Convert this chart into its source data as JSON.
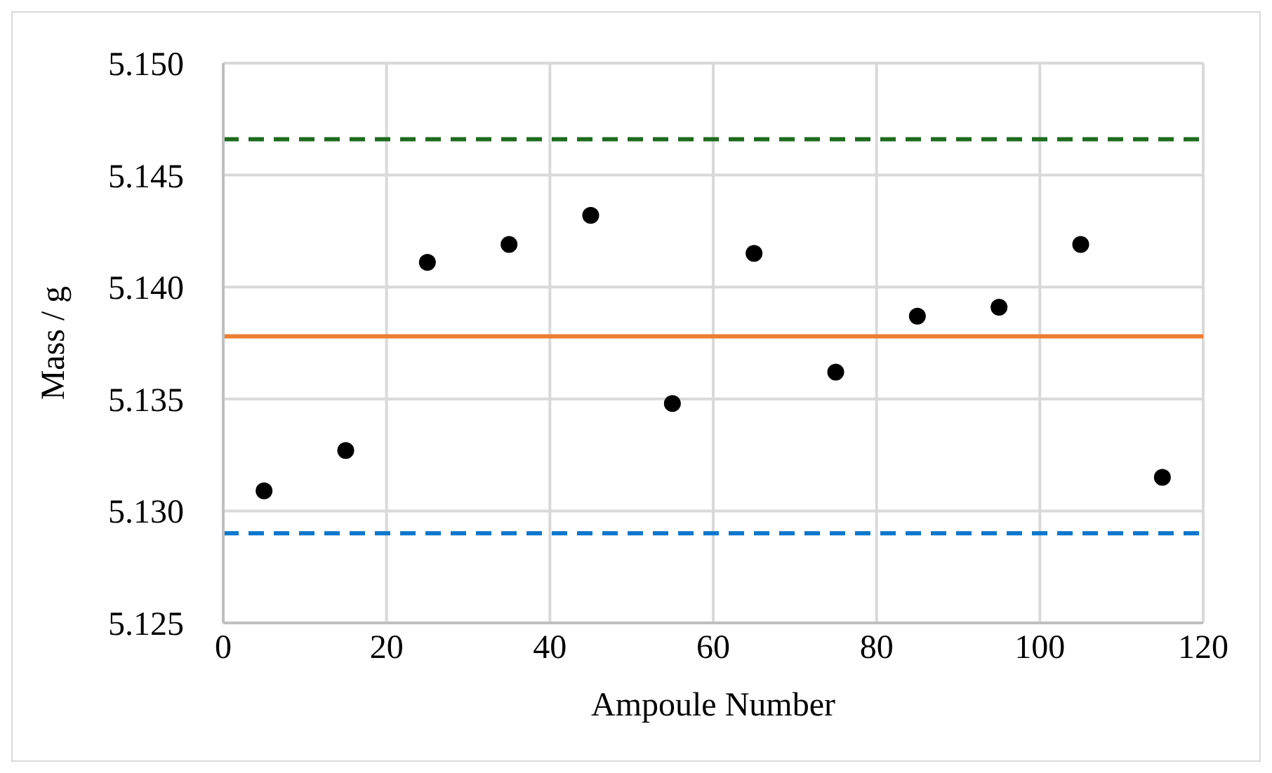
{
  "chart_data": {
    "type": "scatter",
    "xlabel": "Ampoule Number",
    "ylabel": "Mass / g",
    "x": [
      5,
      15,
      25,
      35,
      45,
      55,
      65,
      75,
      85,
      95,
      105,
      115
    ],
    "series": [
      {
        "color": "#000000",
        "values": [
          5.1309,
          5.1327,
          5.1411,
          5.1419,
          5.1432,
          5.1348,
          5.1415,
          5.1362,
          5.1387,
          5.1391,
          5.1419,
          5.1315
        ]
      }
    ],
    "xlim": [
      0,
      120
    ],
    "xticks": [
      0,
      20,
      40,
      60,
      80,
      100,
      120
    ],
    "ylim": [
      5.125,
      5.15
    ],
    "yticks": [
      5.125,
      {
        "value": 5.13,
        "label": "5.130"
      },
      5.135,
      {
        "value": 5.14,
        "label": "5.140"
      },
      5.145,
      {
        "value": 5.15,
        "label": "5.150"
      }
    ],
    "ref_lines": [
      {
        "axis": "y",
        "value": 5.1466,
        "color": "#1e6b1e",
        "line_style": "dashed"
      },
      {
        "axis": "y",
        "value": 5.1378,
        "color": "#ed7d31",
        "line_style": "solid"
      },
      {
        "axis": "y",
        "value": 5.129,
        "color": "#0b77cc",
        "line_style": "dashed"
      }
    ],
    "grid": true,
    "legend": false,
    "marker": "circle"
  }
}
